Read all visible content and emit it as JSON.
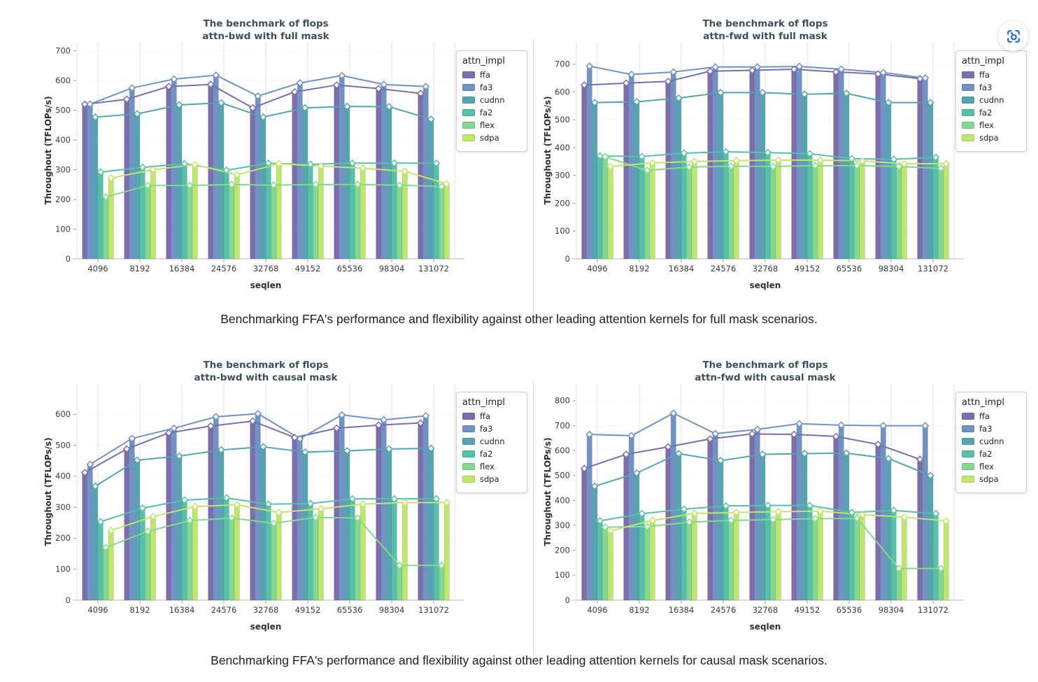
{
  "captions": {
    "full_mask": "Benchmarking FFA's performance and flexibility against other leading attention kernels for full mask scenarios.",
    "causal_mask": "Benchmarking FFA's performance and flexibility against other leading attention kernels for causal mask scenarios."
  },
  "legend": {
    "title": "attn_impl",
    "entries": [
      "ffa",
      "fa3",
      "cudnn",
      "fa2",
      "flex",
      "sdpa"
    ]
  },
  "palette": {
    "ffa": "#7d6daf",
    "fa3": "#7093c6",
    "cudnn": "#54a5b1",
    "fa2": "#54c2a9",
    "flex": "#83d98f",
    "sdpa": "#bfe76a"
  },
  "fab": {
    "icon": "focus-capture-icon",
    "icon_color": "#1a6ad4",
    "background": "#ffffff"
  },
  "chart_data": [
    {
      "type": "bar",
      "title_line1": "The benchmark of flops",
      "title_line2": "attn-bwd with full mask",
      "xlabel": "seqlen",
      "ylabel": "Throughout (TFLOPs/s)",
      "categories": [
        "4096",
        "8192",
        "16384",
        "24576",
        "32768",
        "49152",
        "65536",
        "98304",
        "131072"
      ],
      "ylim": [
        0,
        730
      ],
      "ytick_max": 700,
      "ytick_step": 100,
      "ydomain_max": 730,
      "grid": true,
      "legend_position": "right",
      "series": [
        {
          "name": "ffa",
          "color": "#7d6daf",
          "values": [
            520,
            537,
            580,
            587,
            508,
            562,
            585,
            573,
            557
          ]
        },
        {
          "name": "fa3",
          "color": "#7093c6",
          "values": [
            521,
            575,
            605,
            618,
            548,
            592,
            617,
            587,
            580
          ]
        },
        {
          "name": "cudnn",
          "color": "#54a5b1",
          "values": [
            477,
            488,
            518,
            525,
            477,
            508,
            513,
            512,
            470
          ]
        },
        {
          "name": "fa2",
          "color": "#54c2a9",
          "values": [
            292,
            308,
            320,
            298,
            322,
            318,
            322,
            322,
            322
          ]
        },
        {
          "name": "flex",
          "color": "#83d98f",
          "values": [
            208,
            247,
            247,
            250,
            248,
            250,
            250,
            248,
            243
          ]
        },
        {
          "name": "sdpa",
          "color": "#bfe76a",
          "values": [
            272,
            300,
            317,
            283,
            320,
            312,
            305,
            295,
            252
          ]
        }
      ]
    },
    {
      "type": "bar",
      "title_line1": "The benchmark of flops",
      "title_line2": "attn-fwd with full mask",
      "xlabel": "seqlen",
      "ylabel": "Throughout (TFLOPs/s)",
      "categories": [
        "4096",
        "8192",
        "16384",
        "24576",
        "32768",
        "49152",
        "65536",
        "98304",
        "131072"
      ],
      "ylim": [
        0,
        780
      ],
      "ytick_max": 700,
      "ytick_step": 100,
      "ydomain_max": 780,
      "grid": true,
      "legend_position": "right",
      "series": [
        {
          "name": "ffa",
          "color": "#7d6daf",
          "values": [
            625,
            632,
            638,
            675,
            678,
            682,
            672,
            665,
            648
          ]
        },
        {
          "name": "fa3",
          "color": "#7093c6",
          "values": [
            693,
            663,
            672,
            690,
            690,
            692,
            682,
            670,
            650
          ]
        },
        {
          "name": "cudnn",
          "color": "#54a5b1",
          "values": [
            562,
            565,
            578,
            598,
            598,
            592,
            595,
            562,
            562
          ]
        },
        {
          "name": "fa2",
          "color": "#54c2a9",
          "values": [
            370,
            368,
            380,
            385,
            382,
            378,
            360,
            358,
            365
          ]
        },
        {
          "name": "flex",
          "color": "#83d98f",
          "values": [
            367,
            318,
            330,
            333,
            332,
            335,
            335,
            332,
            325
          ]
        },
        {
          "name": "sdpa",
          "color": "#bfe76a",
          "values": [
            332,
            345,
            350,
            353,
            355,
            355,
            352,
            342,
            342
          ]
        }
      ]
    },
    {
      "type": "bar",
      "title_line1": "The benchmark of flops",
      "title_line2": "attn-bwd with causal mask",
      "xlabel": "seqlen",
      "ylabel": "Throughout (TFLOPs/s)",
      "categories": [
        "4096",
        "8192",
        "16384",
        "24576",
        "32768",
        "49152",
        "65536",
        "98304",
        "131072"
      ],
      "ylim": [
        0,
        700
      ],
      "ytick_max": 600,
      "ytick_step": 100,
      "ydomain_max": 700,
      "grid": true,
      "legend_position": "right",
      "series": [
        {
          "name": "ffa",
          "color": "#7d6daf",
          "values": [
            412,
            488,
            540,
            562,
            578,
            525,
            555,
            565,
            572
          ]
        },
        {
          "name": "fa3",
          "color": "#7093c6",
          "values": [
            438,
            522,
            555,
            592,
            602,
            521,
            598,
            582,
            595
          ]
        },
        {
          "name": "cudnn",
          "color": "#54a5b1",
          "values": [
            368,
            452,
            465,
            485,
            495,
            478,
            482,
            488,
            490
          ]
        },
        {
          "name": "fa2",
          "color": "#54c2a9",
          "values": [
            253,
            297,
            323,
            330,
            310,
            312,
            327,
            327,
            327
          ]
        },
        {
          "name": "flex",
          "color": "#83d98f",
          "values": [
            170,
            222,
            257,
            265,
            248,
            267,
            265,
            112,
            112
          ]
        },
        {
          "name": "sdpa",
          "color": "#bfe76a",
          "values": [
            225,
            270,
            302,
            308,
            283,
            295,
            310,
            315,
            315
          ]
        }
      ]
    },
    {
      "type": "bar",
      "title_line1": "The benchmark of flops",
      "title_line2": "attn-fwd with causal mask",
      "xlabel": "seqlen",
      "ylabel": "Throughout (TFLOPs/s)",
      "categories": [
        "4096",
        "8192",
        "16384",
        "24576",
        "32768",
        "49152",
        "65536",
        "98304",
        "131072"
      ],
      "ylim": [
        0,
        870
      ],
      "ytick_max": 800,
      "ytick_step": 100,
      "ydomain_max": 870,
      "grid": true,
      "legend_position": "right",
      "series": [
        {
          "name": "ffa",
          "color": "#7d6daf",
          "values": [
            528,
            585,
            615,
            647,
            667,
            665,
            657,
            625,
            565
          ]
        },
        {
          "name": "fa3",
          "color": "#7093c6",
          "values": [
            665,
            660,
            750,
            668,
            685,
            708,
            702,
            700,
            700
          ]
        },
        {
          "name": "cudnn",
          "color": "#54a5b1",
          "values": [
            457,
            510,
            588,
            560,
            585,
            588,
            590,
            568,
            500
          ]
        },
        {
          "name": "fa2",
          "color": "#54c2a9",
          "values": [
            318,
            347,
            365,
            378,
            380,
            380,
            352,
            360,
            347
          ]
        },
        {
          "name": "flex",
          "color": "#83d98f",
          "values": [
            293,
            295,
            313,
            320,
            323,
            327,
            328,
            127,
            127
          ]
        },
        {
          "name": "sdpa",
          "color": "#bfe76a",
          "values": [
            278,
            320,
            348,
            352,
            355,
            357,
            343,
            333,
            318
          ]
        }
      ]
    }
  ]
}
